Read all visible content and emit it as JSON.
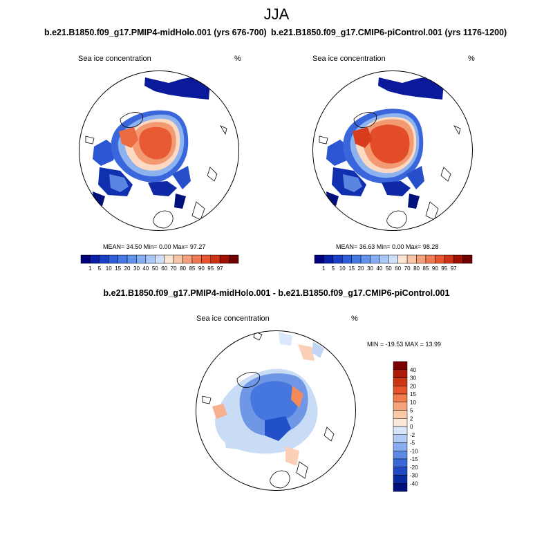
{
  "figure": {
    "season": "JJA",
    "panels": [
      {
        "title": "b.e21.B1850.f09_g17.PMIP4-midHolo.001 (yrs 676-700)",
        "variable": "Sea ice concentration",
        "units": "%",
        "stats_text": "MEAN=  34.50  Min=   0.00  Max=  97.27"
      },
      {
        "title": "b.e21.B1850.f09_g17.CMIP6-piControl.001 (yrs 1176-1200)",
        "variable": "Sea ice concentration",
        "units": "%",
        "stats_text": "MEAN=  36.63  Min=   0.00  Max=  98.28"
      }
    ],
    "difference_panel": {
      "title": "b.e21.B1850.f09_g17.PMIP4-midHolo.001 - b.e21.B1850.f09_g17.CMIP6-piControl.001",
      "variable": "Sea ice concentration",
      "units": "%",
      "stats_text": "MIN = -19.53 MAX =  13.99"
    },
    "colorbar_concentration": {
      "labels": [
        "1",
        "5",
        "10",
        "15",
        "20",
        "30",
        "40",
        "50",
        "60",
        "70",
        "80",
        "85",
        "90",
        "95",
        "97"
      ],
      "colors": [
        "#00007a",
        "#0a1fa8",
        "#1a3fc6",
        "#2f5fd8",
        "#4478e4",
        "#6192ec",
        "#86aef2",
        "#aac8f6",
        "#cfe0f8",
        "#fde6d4",
        "#f9c7a8",
        "#f4a07c",
        "#ee7a52",
        "#e6552f",
        "#cf3316",
        "#a01000",
        "#6f0000"
      ]
    },
    "colorbar_difference": {
      "labels": [
        "40",
        "30",
        "20",
        "15",
        "10",
        "5",
        "2",
        "0",
        "-2",
        "-5",
        "-10",
        "-15",
        "-20",
        "-30",
        "-40"
      ],
      "colors": [
        "#7a0000",
        "#ad1a05",
        "#cc3412",
        "#e5542a",
        "#f07b4c",
        "#f6a37a",
        "#fac9a8",
        "#fde9d8",
        "#d6e6f8",
        "#b1cbf3",
        "#88aced",
        "#5f8ae4",
        "#3b6ad8",
        "#1f48c2",
        "#0c2aa0",
        "#00107a"
      ]
    }
  }
}
